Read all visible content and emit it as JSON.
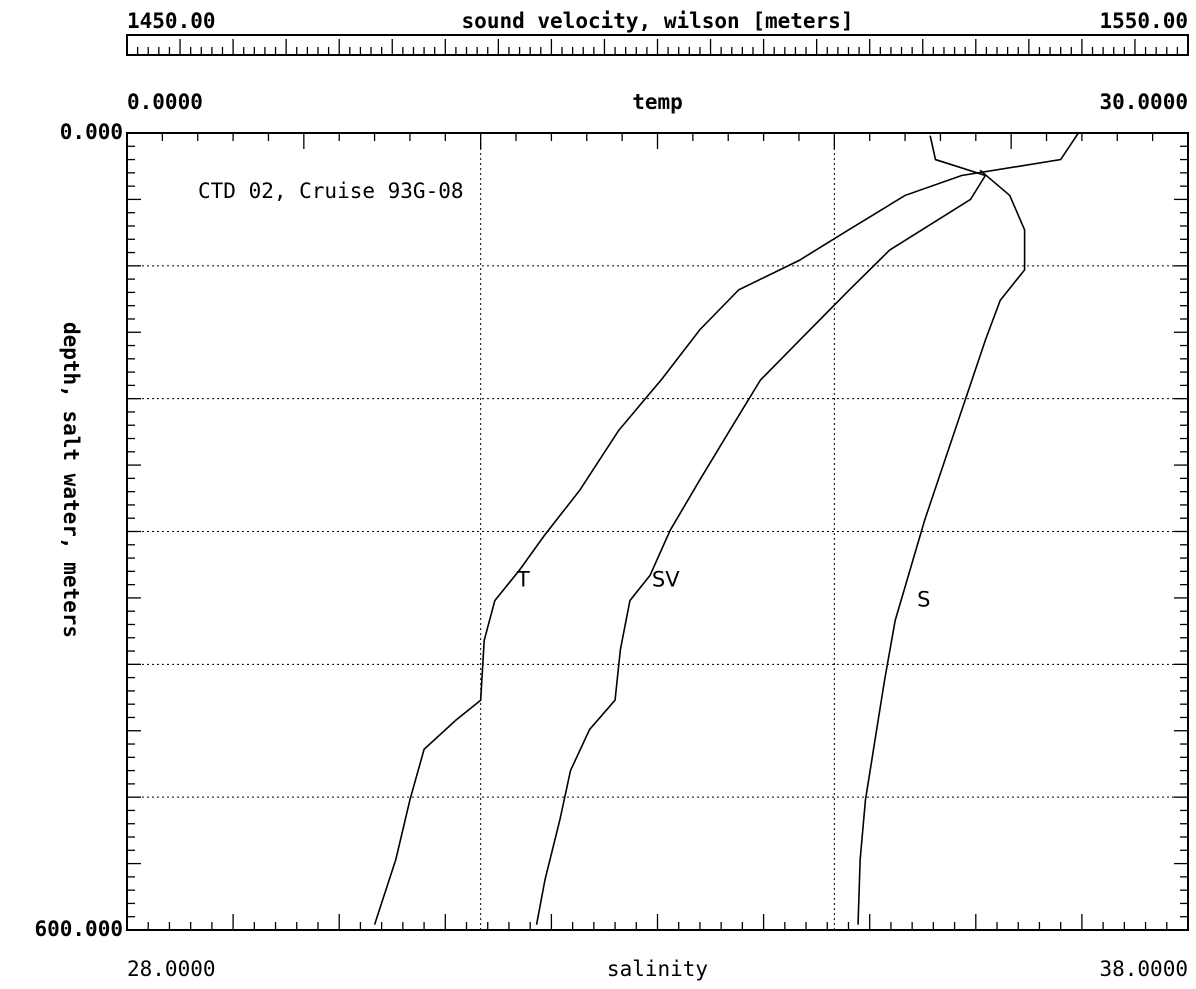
{
  "chart_data": {
    "type": "line",
    "annotation": "CTD 02, Cruise 93G-08",
    "y_axis": {
      "label": "depth, salt water, meters",
      "ylim": [
        0,
        600
      ],
      "yticks": [
        {
          "value": 0,
          "label": "0.000"
        },
        {
          "value": 600,
          "label": "600.000"
        }
      ],
      "grid": [
        100,
        200,
        300,
        400,
        500
      ]
    },
    "x_axes": [
      {
        "label": "sound velocity, wilson [meters]",
        "position": "top",
        "xlim": [
          1450,
          1550
        ],
        "xticks": [
          {
            "value": 1450,
            "label": "1450.00"
          },
          {
            "value": 1550,
            "label": "1550.00"
          }
        ]
      },
      {
        "label": "temp",
        "position": "inner-top",
        "xlim": [
          0,
          30
        ],
        "xticks": [
          {
            "value": 0,
            "label": "0.0000"
          },
          {
            "value": 30,
            "label": "30.0000"
          }
        ],
        "grid": [
          10,
          20
        ]
      },
      {
        "label": "salinity",
        "position": "bottom",
        "xlim": [
          28,
          38
        ],
        "xticks": [
          {
            "value": 28,
            "label": "28.0000"
          },
          {
            "value": 38,
            "label": "38.0000"
          }
        ]
      }
    ],
    "series": [
      {
        "name": "T",
        "axis": 1,
        "color": "#000000",
        "values": [
          26.9,
          26.4,
          23.6,
          22.0,
          20.4,
          19.0,
          17.3,
          16.2,
          15.1,
          13.9,
          12.8,
          11.8,
          11.1,
          10.4,
          10.1,
          10.0,
          9.3,
          8.4,
          8.0,
          7.6,
          7.0
        ],
        "depths": [
          0,
          20,
          32,
          47,
          73,
          96,
          118,
          148,
          186,
          224,
          269,
          303,
          329,
          352,
          382,
          427,
          442,
          464,
          502,
          547,
          596
        ]
      },
      {
        "name": "SV",
        "axis": 0,
        "color": "#000000",
        "values": [
          1525.7,
          1526.2,
          1530.9,
          1529.5,
          1525.7,
          1521.9,
          1518.1,
          1513.4,
          1509.7,
          1506.8,
          1504.0,
          1501.2,
          1499.3,
          1497.4,
          1496.5,
          1496.0,
          1493.6,
          1491.8,
          1490.8,
          1489.4,
          1488.6
        ],
        "depths": [
          2,
          20,
          32,
          50,
          69,
          88,
          118,
          156,
          186,
          224,
          261,
          299,
          333,
          352,
          389,
          427,
          449,
          480,
          517,
          562,
          596
        ]
      },
      {
        "name": "S",
        "axis": 2,
        "color": "#000000",
        "values": [
          36.04,
          36.32,
          36.46,
          36.46,
          36.23,
          36.09,
          35.9,
          35.71,
          35.52,
          35.38,
          35.24,
          35.14,
          35.05,
          34.96,
          34.91,
          34.89
        ],
        "depths": [
          28,
          47,
          73,
          103,
          126,
          156,
          201,
          246,
          291,
          329,
          367,
          412,
          457,
          502,
          547,
          596
        ]
      }
    ]
  }
}
